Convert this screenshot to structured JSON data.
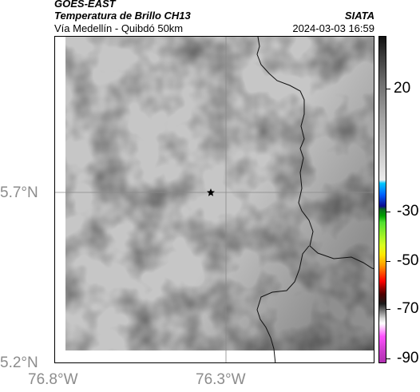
{
  "header": {
    "satellite": "GOES-EAST",
    "product": "Temperatura de Brillo CH13",
    "organization": "SIATA",
    "region": "Vía Medellín - Quibdó 50km",
    "datetime": "2024-03-03 16:59"
  },
  "map": {
    "lat_ticks": [
      "5.7°N",
      "5.2°N"
    ],
    "lon_ticks": [
      "76.8°W",
      "76.3°W"
    ],
    "marker": "star-marker",
    "background_scale": "grayscale"
  },
  "colorbar": {
    "labels": [
      "20",
      "-30",
      "-50",
      "-70",
      "-90"
    ],
    "colors": {
      "top": "#111111",
      "cyan": "#00c8ff",
      "blue": "#0a0a90",
      "green": "#00a000",
      "yellow": "#ffe600",
      "red": "#ff0000",
      "magenta": "#ff50ff"
    }
  }
}
